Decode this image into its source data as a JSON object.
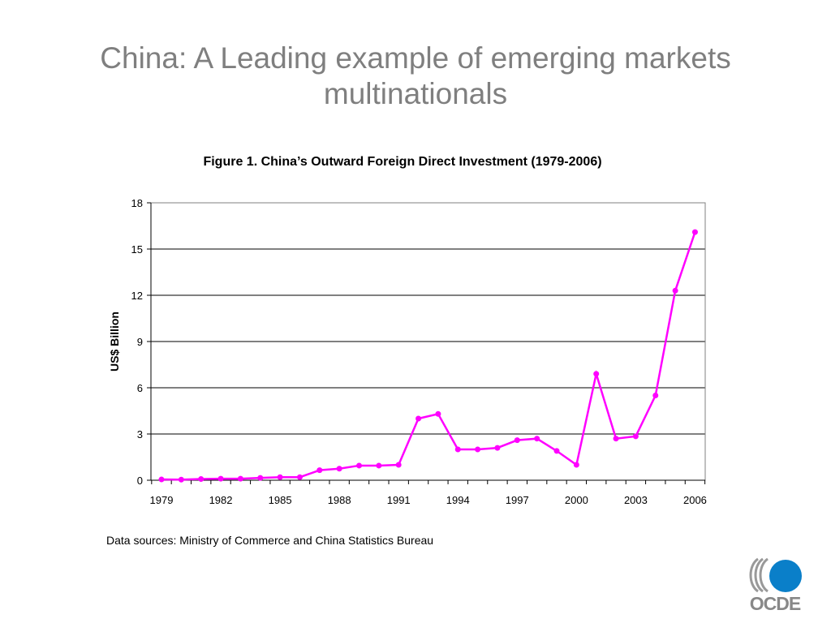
{
  "slide": {
    "title": "China: A Leading example of emerging markets multinationals"
  },
  "chart_data": {
    "type": "line",
    "title": "Figure 1.  China’s Outward Foreign Direct Investment (1979-2006)",
    "xlabel": "",
    "ylabel": "US$ Billion",
    "ylim": [
      0,
      18
    ],
    "yticks": [
      0,
      3,
      6,
      9,
      12,
      15,
      18
    ],
    "xtick_labels": [
      "1979",
      "1982",
      "1985",
      "1988",
      "1991",
      "1994",
      "1997",
      "2000",
      "2003",
      "2006"
    ],
    "xlim": [
      1979,
      2006
    ],
    "grid": true,
    "line_color": "#ff00ff",
    "x": [
      1979,
      1980,
      1981,
      1982,
      1983,
      1984,
      1985,
      1986,
      1987,
      1988,
      1989,
      1990,
      1991,
      1992,
      1993,
      1994,
      1995,
      1996,
      1997,
      1998,
      1999,
      2000,
      2001,
      2002,
      2003,
      2004,
      2005,
      2006
    ],
    "values": [
      0.05,
      0.04,
      0.08,
      0.1,
      0.1,
      0.15,
      0.2,
      0.2,
      0.65,
      0.75,
      0.95,
      0.95,
      1.0,
      4.0,
      4.3,
      2.0,
      2.0,
      2.1,
      2.6,
      2.7,
      1.9,
      1.0,
      6.9,
      2.7,
      2.85,
      5.5,
      12.3,
      16.1
    ]
  },
  "source": {
    "text": "Data sources: Ministry of Commerce and China Statistics Bureau"
  },
  "logo": {
    "text": "OCDE",
    "accent_color": "#0a7fc9"
  }
}
